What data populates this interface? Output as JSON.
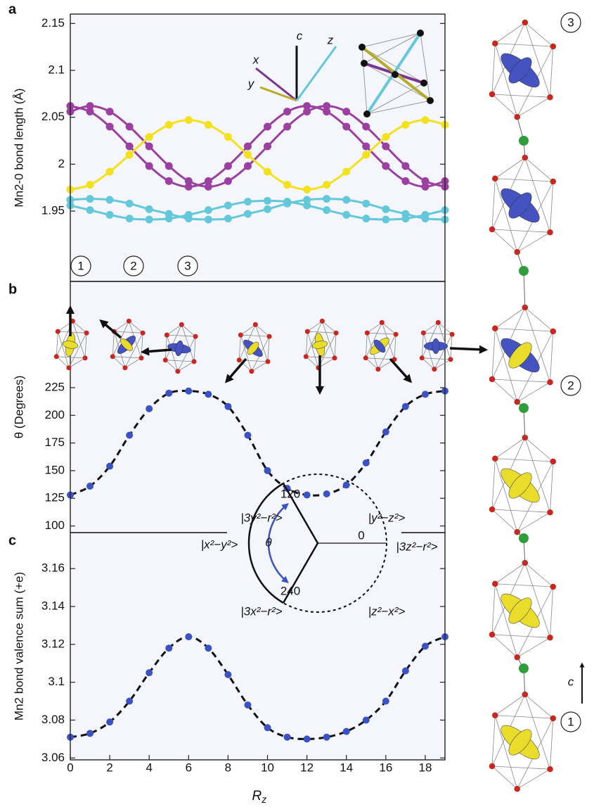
{
  "chart_data": [
    {
      "type": "line",
      "panel_label": "a",
      "y_label": "Mn2-0 bond length (Å)",
      "x": [
        0,
        1,
        2,
        3,
        4,
        5,
        6,
        7,
        8,
        9,
        10,
        11,
        12,
        13,
        14,
        15,
        16,
        17,
        18,
        19
      ],
      "xlim": [
        0,
        19
      ],
      "ylim": [
        1.875,
        2.16
      ],
      "yticks": [
        1.95,
        2,
        2.05,
        2.1,
        2.15
      ],
      "series": [
        {
          "color": "#9b3fa0",
          "values": [
            2.062,
            2.056,
            2.04,
            2.019,
            1.998,
            1.982,
            1.976,
            1.982,
            1.998,
            2.019,
            2.04,
            2.056,
            2.062,
            2.056,
            2.04,
            2.019,
            1.998,
            1.982,
            1.976,
            1.982
          ]
        },
        {
          "color": "#9b3fa0",
          "values": [
            2.056,
            2.062,
            2.056,
            2.04,
            2.019,
            1.998,
            1.982,
            1.976,
            1.982,
            1.998,
            2.019,
            2.04,
            2.056,
            2.062,
            2.056,
            2.04,
            2.019,
            1.998,
            1.982,
            1.976
          ]
        },
        {
          "color": "#f2e21e",
          "values": [
            1.973,
            1.978,
            1.992,
            2.01,
            2.029,
            2.042,
            2.047,
            2.042,
            2.029,
            2.01,
            1.992,
            1.978,
            1.973,
            1.978,
            1.992,
            2.01,
            2.029,
            2.042,
            2.047,
            2.042
          ]
        },
        {
          "color": "#62c8da",
          "values": [
            1.962,
            1.963,
            1.962,
            1.958,
            1.952,
            1.947,
            1.942,
            1.941,
            1.942,
            1.947,
            1.952,
            1.958,
            1.962,
            1.963,
            1.962,
            1.958,
            1.952,
            1.947,
            1.942,
            1.941
          ]
        },
        {
          "color": "#62c8da",
          "values": [
            1.956,
            1.951,
            1.946,
            1.942,
            1.941,
            1.942,
            1.946,
            1.951,
            1.956,
            1.96,
            1.961,
            1.96,
            1.956,
            1.951,
            1.946,
            1.942,
            1.941,
            1.942,
            1.946,
            1.951
          ]
        }
      ],
      "markers": [
        "1",
        "2",
        "3"
      ],
      "inset_axes": [
        "c",
        "x",
        "y",
        "z"
      ]
    },
    {
      "type": "scatter_fit",
      "panel_label": "b",
      "y_label": "θ (Degrees)",
      "x": [
        0,
        1,
        2,
        3,
        4,
        5,
        6,
        7,
        8,
        9,
        10,
        11,
        12,
        13,
        14,
        15,
        16,
        17,
        18,
        19
      ],
      "xlim": [
        0,
        19
      ],
      "ylim": [
        94,
        321
      ],
      "yticks": [
        100,
        125,
        150,
        175,
        200,
        225
      ],
      "series": [
        {
          "color": "#3a52c4",
          "values": [
            128,
            136,
            154,
            182,
            206,
            220,
            222,
            219,
            208,
            182,
            150,
            134,
            128,
            129,
            137,
            157,
            185,
            208,
            219,
            222
          ]
        }
      ]
    },
    {
      "type": "scatter_fit",
      "panel_label": "c",
      "y_label": "Mn2 bond valence sum (+e)",
      "x_label": "R",
      "x_label_sub": "z",
      "x": [
        0,
        1,
        2,
        3,
        4,
        5,
        6,
        7,
        8,
        9,
        10,
        11,
        12,
        13,
        14,
        15,
        16,
        17,
        18,
        19
      ],
      "xlim": [
        0,
        19
      ],
      "xticks": [
        0,
        2,
        4,
        6,
        8,
        10,
        12,
        14,
        16,
        18
      ],
      "ylim": [
        3.059,
        3.179
      ],
      "yticks": [
        3.06,
        3.08,
        3.1,
        3.12,
        3.14,
        3.16
      ],
      "series": [
        {
          "color": "#3a52c4",
          "values": [
            3.071,
            3.073,
            3.079,
            3.09,
            3.105,
            3.118,
            3.124,
            3.118,
            3.104,
            3.088,
            3.076,
            3.071,
            3.07,
            3.071,
            3.074,
            3.08,
            3.09,
            3.106,
            3.119,
            3.124
          ]
        }
      ],
      "inset": {
        "angles": [
          120,
          0,
          240
        ],
        "theta": "θ",
        "states": [
          "|3y²−r²>",
          "|y²−z²>",
          "|x²−y²>",
          "|3z²−r²>",
          "|3x²−r²>",
          "|z²−x²>"
        ]
      }
    }
  ],
  "structure": {
    "labels": [
      "3",
      "2",
      "1"
    ],
    "axis": "c"
  }
}
